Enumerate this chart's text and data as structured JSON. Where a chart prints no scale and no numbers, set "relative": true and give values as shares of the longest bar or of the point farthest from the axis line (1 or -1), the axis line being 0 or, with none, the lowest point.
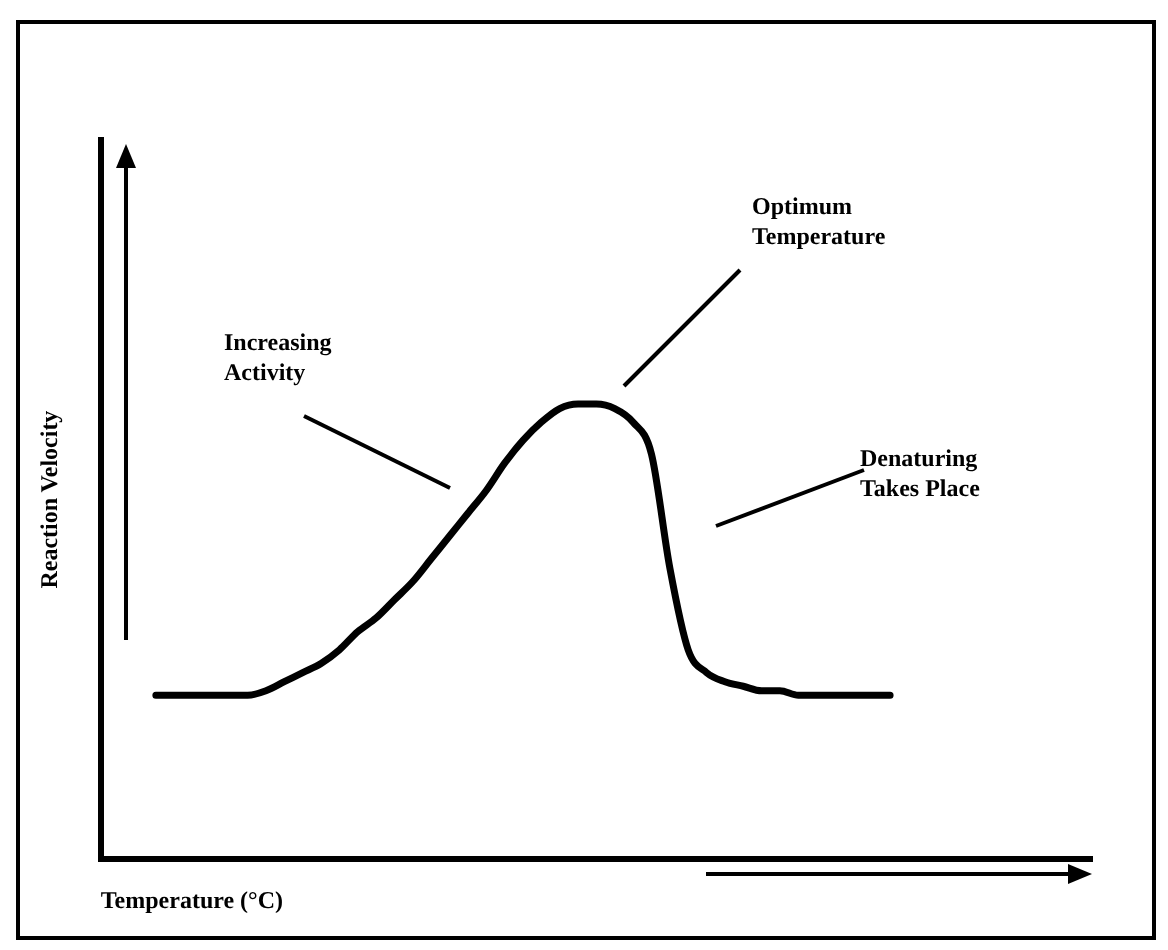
{
  "chart_data": {
    "type": "line",
    "relative": true,
    "xlabel": "Temperature (°C)",
    "ylabel": "Reaction Velocity",
    "categories": [
      null,
      null,
      null,
      null,
      null,
      null,
      null,
      null,
      null,
      null,
      null,
      null,
      null,
      null,
      null,
      null,
      null,
      null,
      null,
      null,
      null,
      null,
      null,
      null,
      null,
      null,
      null,
      null,
      null,
      null,
      null,
      null,
      null,
      null,
      null,
      null,
      null,
      null,
      null,
      null,
      null
    ],
    "series": [
      {
        "color": "#000000",
        "values": [
          0.36,
          0.36,
          0.36,
          0.36,
          0.36,
          0.36,
          0.37,
          0.39,
          0.41,
          0.43,
          0.46,
          0.5,
          0.53,
          0.57,
          0.61,
          0.66,
          0.71,
          0.76,
          0.81,
          0.87,
          0.92,
          0.96,
          0.99,
          1,
          1,
          0.99,
          0.96,
          0.89,
          0.64,
          0.46,
          0.41,
          0.39,
          0.38,
          0.37,
          0.37,
          0.36,
          0.36,
          0.36,
          0.36,
          0.36,
          0.36
        ]
      }
    ],
    "annotations": [
      "Increasing\nActivity",
      "Optimum\nTemperature",
      "Denaturing\nTakes Place"
    ],
    "grid": false,
    "legend": false,
    "marker": "none",
    "line_style": "solid"
  }
}
